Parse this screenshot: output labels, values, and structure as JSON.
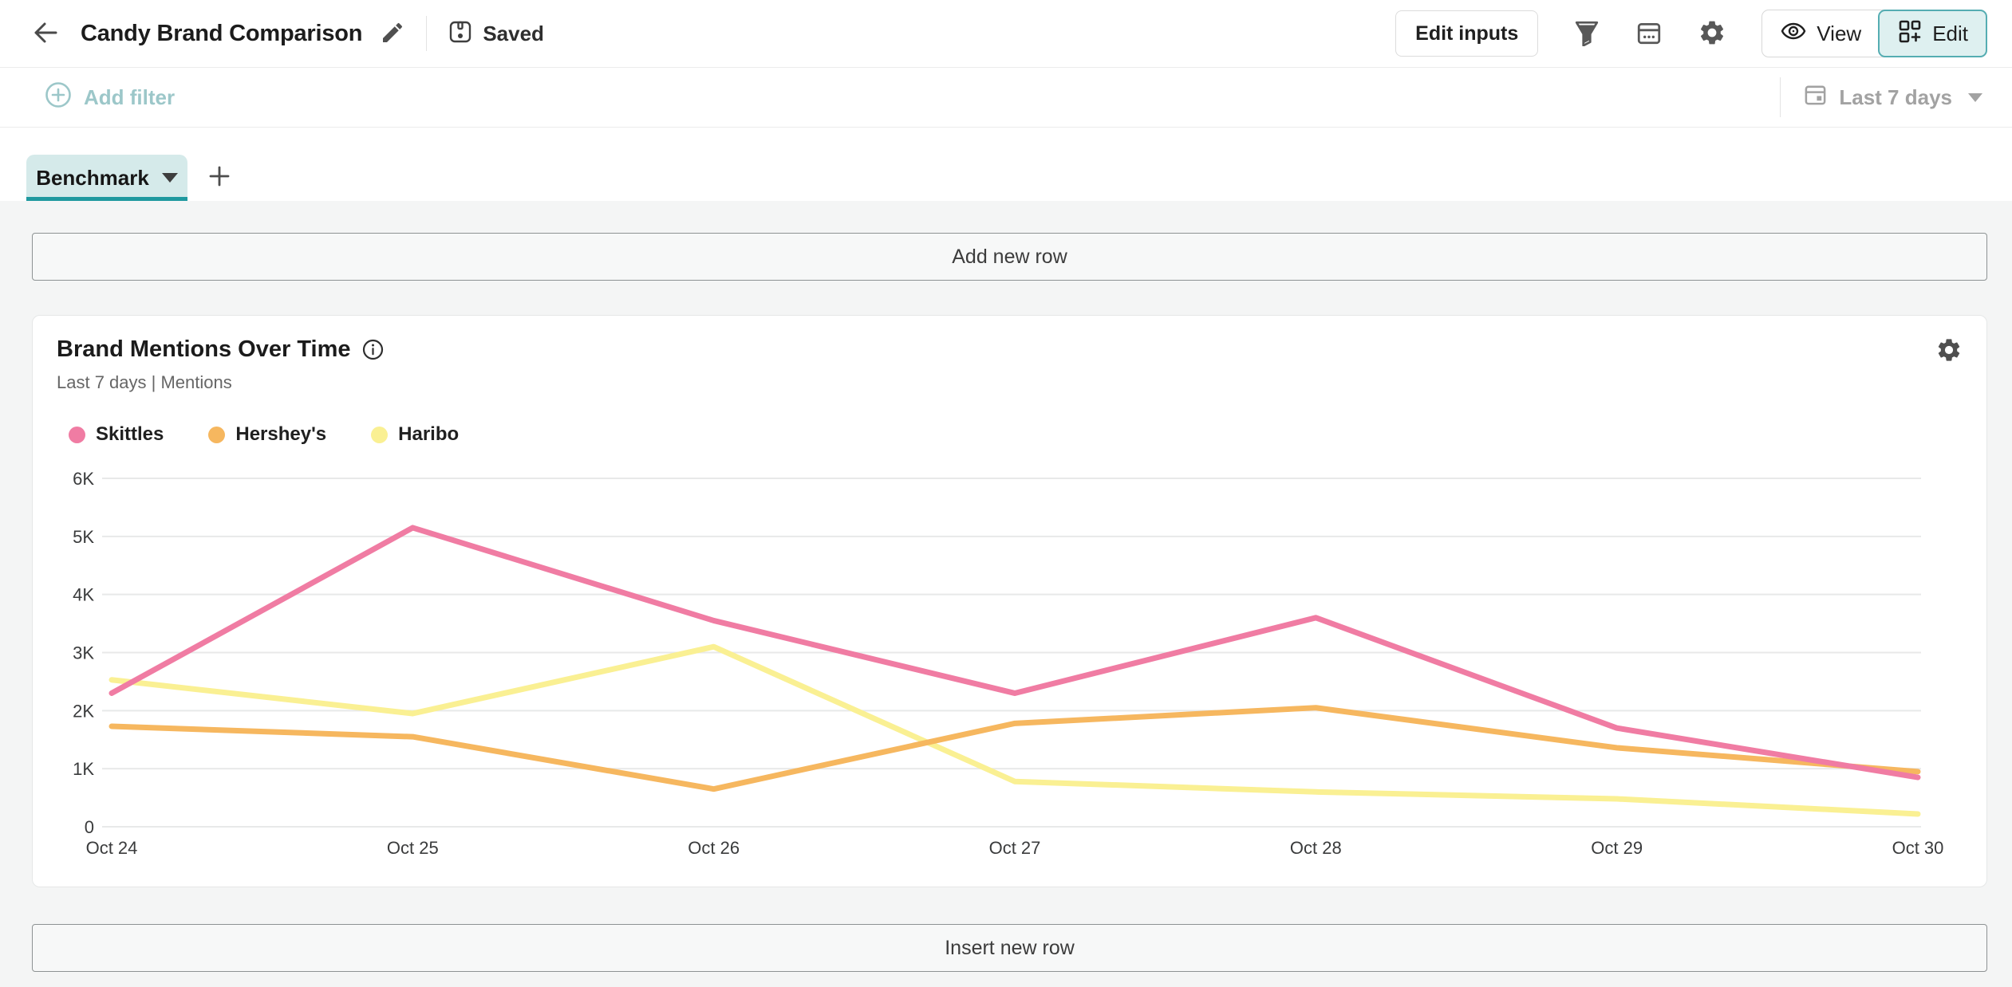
{
  "header": {
    "title": "Candy Brand Comparison",
    "saved_label": "Saved",
    "edit_inputs_label": "Edit inputs",
    "view_label": "View",
    "edit_label": "Edit",
    "active_mode": "Edit"
  },
  "filter_bar": {
    "add_filter_label": "Add filter",
    "date_range_label": "Last 7 days"
  },
  "tabs": {
    "active_tab_label": "Benchmark"
  },
  "rows": {
    "add_new_row_label": "Add new row",
    "insert_new_row_label": "Insert new row"
  },
  "card": {
    "title": "Brand Mentions Over Time",
    "subtitle": "Last 7 days | Mentions"
  },
  "colors": {
    "accent_teal": "#1F999F",
    "tab_bg": "#D5EAEA",
    "edit_toggle_bg": "#DEF0F0",
    "muted_teal_text": "#9CC7C9"
  },
  "chart_data": {
    "type": "line",
    "title": "Brand Mentions Over Time",
    "ylabel": "Mentions",
    "xlabel": "",
    "categories": [
      "Oct 24",
      "Oct 25",
      "Oct 26",
      "Oct 27",
      "Oct 28",
      "Oct 29",
      "Oct 30"
    ],
    "series": [
      {
        "name": "Skittles",
        "color": "#F07CA3",
        "values": [
          2300,
          5150,
          3550,
          2300,
          3600,
          1700,
          850
        ]
      },
      {
        "name": "Hershey's",
        "color": "#F6B75F",
        "values": [
          1730,
          1550,
          650,
          1780,
          2050,
          1360,
          950
        ]
      },
      {
        "name": "Haribo",
        "color": "#FAF093",
        "values": [
          2530,
          1950,
          3100,
          780,
          600,
          480,
          220
        ]
      }
    ],
    "ylim": [
      0,
      6000
    ],
    "yticks": [
      {
        "label": "0",
        "value": 0
      },
      {
        "label": "1K",
        "value": 1000
      },
      {
        "label": "2K",
        "value": 2000
      },
      {
        "label": "3K",
        "value": 3000
      },
      {
        "label": "4K",
        "value": 4000
      },
      {
        "label": "5K",
        "value": 5000
      },
      {
        "label": "6K",
        "value": 6000
      }
    ],
    "grid": "horizontal",
    "legend_position": "top-left"
  }
}
